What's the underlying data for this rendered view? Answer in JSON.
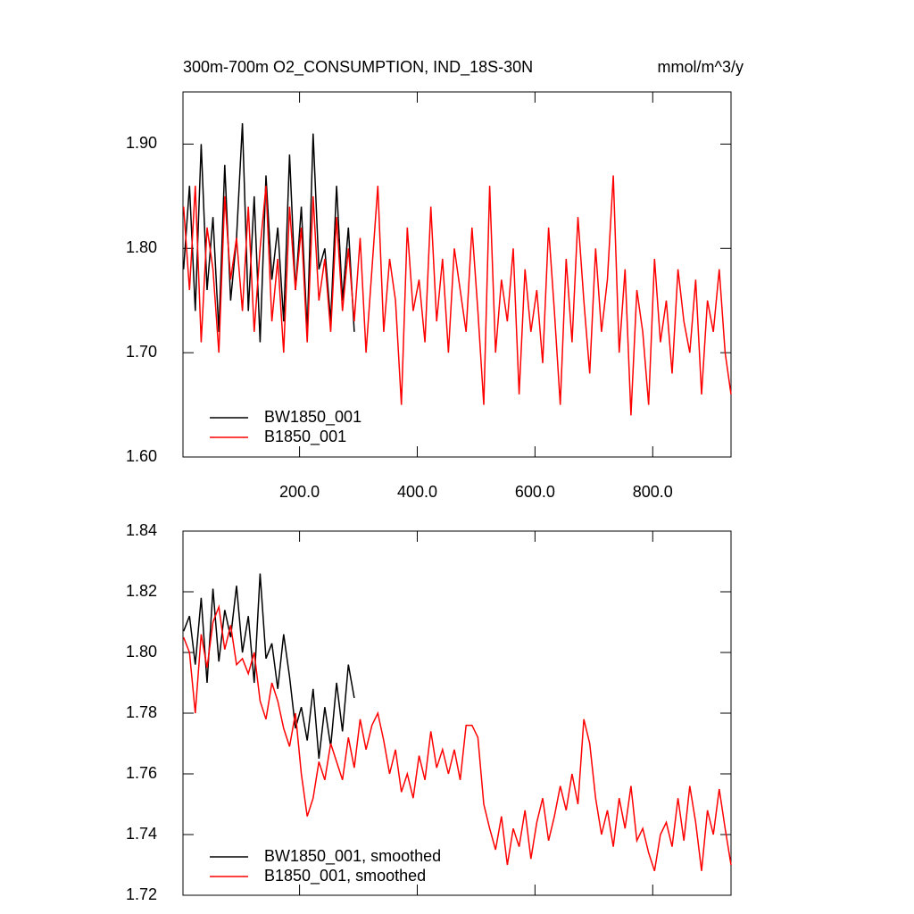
{
  "chart_data": [
    {
      "type": "line",
      "title": "300m-700m O2_CONSUMPTION, IND_18S-30N",
      "units": "mmol/m^3/y",
      "xlim": [
        2,
        933
      ],
      "ylim": [
        1.6,
        1.95
      ],
      "xticks": [
        {
          "value": 200,
          "label": "200.0"
        },
        {
          "value": 400,
          "label": "400.0"
        },
        {
          "value": 600,
          "label": "600.0"
        },
        {
          "value": 800,
          "label": "800.0"
        }
      ],
      "yticks": [
        {
          "value": 1.6,
          "label": "1.60"
        },
        {
          "value": 1.7,
          "label": "1.70"
        },
        {
          "value": 1.8,
          "label": "1.80"
        },
        {
          "value": 1.9,
          "label": "1.90"
        }
      ],
      "xtick_labels": true,
      "series": [
        {
          "name": "BW1850_001",
          "color": "#000000",
          "x": [
            3,
            13,
            23,
            33,
            43,
            53,
            63,
            73,
            83,
            93,
            103,
            113,
            123,
            133,
            143,
            153,
            163,
            173,
            183,
            193,
            203,
            213,
            223,
            233,
            243,
            253,
            263,
            273,
            283,
            293
          ],
          "values": [
            1.78,
            1.86,
            1.74,
            1.9,
            1.76,
            1.83,
            1.72,
            1.88,
            1.75,
            1.81,
            1.92,
            1.74,
            1.85,
            1.71,
            1.87,
            1.77,
            1.82,
            1.73,
            1.89,
            1.76,
            1.84,
            1.72,
            1.91,
            1.78,
            1.8,
            1.73,
            1.86,
            1.75,
            1.82,
            1.72
          ]
        },
        {
          "name": "B1850_001",
          "color": "#ff0000",
          "x": [
            3,
            13,
            23,
            33,
            43,
            53,
            63,
            73,
            83,
            93,
            103,
            113,
            123,
            133,
            143,
            153,
            163,
            173,
            183,
            193,
            203,
            213,
            223,
            233,
            243,
            253,
            263,
            273,
            283,
            293,
            303,
            313,
            323,
            333,
            343,
            353,
            363,
            373,
            383,
            393,
            403,
            413,
            423,
            433,
            443,
            453,
            463,
            473,
            483,
            493,
            503,
            513,
            523,
            533,
            543,
            553,
            563,
            573,
            583,
            593,
            603,
            613,
            623,
            633,
            643,
            653,
            663,
            673,
            683,
            693,
            703,
            713,
            723,
            733,
            743,
            753,
            763,
            773,
            783,
            793,
            803,
            813,
            823,
            833,
            843,
            853,
            863,
            873,
            883,
            893,
            903,
            913,
            923,
            933
          ],
          "values": [
            1.84,
            1.76,
            1.86,
            1.71,
            1.82,
            1.78,
            1.7,
            1.85,
            1.77,
            1.81,
            1.74,
            1.84,
            1.72,
            1.8,
            1.86,
            1.73,
            1.79,
            1.7,
            1.84,
            1.76,
            1.82,
            1.71,
            1.85,
            1.75,
            1.79,
            1.72,
            1.83,
            1.74,
            1.8,
            1.73,
            1.81,
            1.7,
            1.78,
            1.86,
            1.72,
            1.79,
            1.75,
            1.65,
            1.82,
            1.74,
            1.77,
            1.71,
            1.84,
            1.73,
            1.79,
            1.7,
            1.8,
            1.76,
            1.72,
            1.82,
            1.74,
            1.65,
            1.86,
            1.7,
            1.77,
            1.73,
            1.8,
            1.66,
            1.78,
            1.72,
            1.76,
            1.69,
            1.82,
            1.74,
            1.65,
            1.79,
            1.71,
            1.83,
            1.75,
            1.68,
            1.8,
            1.72,
            1.77,
            1.87,
            1.7,
            1.78,
            1.64,
            1.76,
            1.72,
            1.65,
            1.79,
            1.71,
            1.75,
            1.68,
            1.78,
            1.73,
            1.7,
            1.77,
            1.66,
            1.75,
            1.72,
            1.78,
            1.7,
            1.66
          ]
        }
      ]
    },
    {
      "type": "line",
      "xlim": [
        2,
        933
      ],
      "ylim": [
        1.72,
        1.84
      ],
      "xticks": [
        200,
        400,
        600,
        800
      ],
      "yticks": [
        {
          "value": 1.72,
          "label": "1.72"
        },
        {
          "value": 1.74,
          "label": "1.74"
        },
        {
          "value": 1.76,
          "label": "1.76"
        },
        {
          "value": 1.78,
          "label": "1.78"
        },
        {
          "value": 1.8,
          "label": "1.80"
        },
        {
          "value": 1.82,
          "label": "1.82"
        },
        {
          "value": 1.84,
          "label": "1.84"
        }
      ],
      "xtick_labels": false,
      "series": [
        {
          "name": "BW1850_001, smoothed",
          "color": "#000000",
          "x": [
            3,
            13,
            23,
            33,
            43,
            53,
            63,
            73,
            83,
            93,
            103,
            113,
            123,
            133,
            143,
            153,
            163,
            173,
            183,
            193,
            203,
            213,
            223,
            233,
            243,
            253,
            263,
            273,
            283,
            293
          ],
          "values": [
            1.807,
            1.812,
            1.796,
            1.818,
            1.79,
            1.821,
            1.797,
            1.814,
            1.805,
            1.822,
            1.8,
            1.812,
            1.79,
            1.826,
            1.798,
            1.803,
            1.788,
            1.806,
            1.792,
            1.775,
            1.782,
            1.771,
            1.788,
            1.765,
            1.782,
            1.769,
            1.79,
            1.774,
            1.796,
            1.785
          ]
        },
        {
          "name": "B1850_001, smoothed",
          "color": "#ff0000",
          "x": [
            3,
            13,
            23,
            33,
            43,
            53,
            63,
            73,
            83,
            93,
            103,
            113,
            123,
            133,
            143,
            153,
            163,
            173,
            183,
            193,
            203,
            213,
            223,
            233,
            243,
            253,
            263,
            273,
            283,
            293,
            303,
            313,
            323,
            333,
            343,
            353,
            363,
            373,
            383,
            393,
            403,
            413,
            423,
            433,
            443,
            453,
            463,
            473,
            483,
            493,
            503,
            513,
            523,
            533,
            543,
            553,
            563,
            573,
            583,
            593,
            603,
            613,
            623,
            633,
            643,
            653,
            663,
            673,
            683,
            693,
            703,
            713,
            723,
            733,
            743,
            753,
            763,
            773,
            783,
            793,
            803,
            813,
            823,
            833,
            843,
            853,
            863,
            873,
            883,
            893,
            903,
            913,
            923,
            933
          ],
          "values": [
            1.805,
            1.8,
            1.78,
            1.806,
            1.795,
            1.81,
            1.815,
            1.801,
            1.809,
            1.796,
            1.798,
            1.793,
            1.8,
            1.784,
            1.778,
            1.79,
            1.784,
            1.775,
            1.769,
            1.78,
            1.76,
            1.746,
            1.752,
            1.764,
            1.758,
            1.77,
            1.764,
            1.758,
            1.772,
            1.762,
            1.778,
            1.768,
            1.776,
            1.78,
            1.771,
            1.76,
            1.768,
            1.754,
            1.76,
            1.752,
            1.766,
            1.758,
            1.774,
            1.762,
            1.768,
            1.76,
            1.768,
            1.758,
            1.776,
            1.776,
            1.772,
            1.75,
            1.742,
            1.735,
            1.746,
            1.73,
            1.742,
            1.736,
            1.748,
            1.732,
            1.744,
            1.752,
            1.738,
            1.746,
            1.756,
            1.748,
            1.76,
            1.75,
            1.778,
            1.77,
            1.752,
            1.74,
            1.748,
            1.736,
            1.752,
            1.742,
            1.756,
            1.738,
            1.742,
            1.734,
            1.728,
            1.74,
            1.744,
            1.736,
            1.752,
            1.738,
            1.756,
            1.744,
            1.728,
            1.748,
            1.74,
            1.755,
            1.742,
            1.73
          ]
        }
      ]
    }
  ]
}
